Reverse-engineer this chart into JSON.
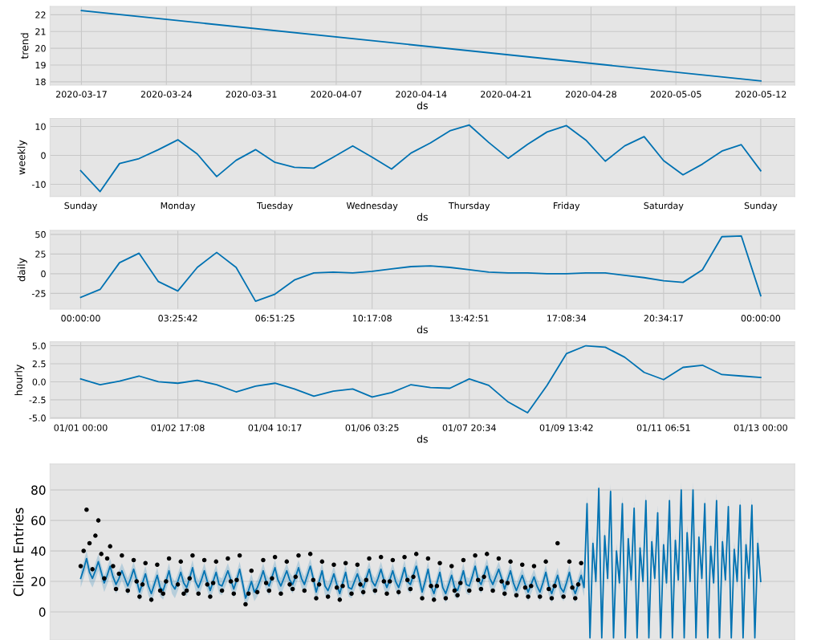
{
  "chart_data": [
    {
      "type": "line",
      "xlabel": "ds",
      "ylabel": "trend",
      "grid": true,
      "xlim": [
        "2020-03-14T10:00",
        "2020-05-14T19:00"
      ],
      "ylim": [
        17.8,
        22.5
      ],
      "xticks": [
        "2020-03-17",
        "2020-03-24",
        "2020-03-31",
        "2020-04-07",
        "2020-04-14",
        "2020-04-21",
        "2020-04-28",
        "2020-05-05",
        "2020-05-12"
      ],
      "yticks": [
        18,
        19,
        20,
        21,
        22
      ],
      "series": [
        {
          "color": "#0072b2",
          "x": [
            "2020-03-17",
            "2020-05-12"
          ],
          "values": [
            22.25,
            18.05
          ]
        }
      ]
    },
    {
      "type": "line",
      "xlabel": "ds",
      "ylabel": "weekly",
      "grid": true,
      "categories": [
        "Sunday",
        null,
        null,
        null,
        null,
        "Monday",
        null,
        null,
        null,
        null,
        "Tuesday",
        null,
        null,
        null,
        null,
        "Wednesday",
        null,
        null,
        null,
        null,
        "Thursday",
        null,
        null,
        null,
        null,
        "Friday",
        null,
        null,
        null,
        null,
        "Saturday",
        null,
        null,
        null,
        null,
        "Sunday"
      ],
      "ylim": [
        -14.2,
        12.8
      ],
      "yticks": [
        -10,
        0,
        10
      ],
      "series": [
        {
          "color": "#0072b2",
          "values": [
            -5.3,
            -12.5,
            -2.8,
            -1.1,
            2,
            5.4,
            0.5,
            -7.3,
            -1.7,
            2,
            -2.4,
            -4.1,
            -4.4,
            -0.6,
            3.3,
            -0.6,
            -4.7,
            0.8,
            4.3,
            8.5,
            10.5,
            4.5,
            -1,
            3.8,
            8.1,
            10.3,
            5.3,
            -2,
            3.3,
            6.5,
            -1.8,
            -6.7,
            -3,
            1.5,
            3.7,
            -5.3
          ]
        }
      ]
    },
    {
      "type": "line",
      "xlabel": "ds",
      "ylabel": "daily",
      "grid": true,
      "categories": [
        "00:00:00",
        null,
        null,
        null,
        null,
        "03:25:42",
        null,
        null,
        null,
        null,
        "06:51:25",
        null,
        null,
        null,
        null,
        "10:17:08",
        null,
        null,
        null,
        null,
        "13:42:51",
        null,
        null,
        null,
        null,
        "17:08:34",
        null,
        null,
        null,
        null,
        "20:34:17",
        null,
        null,
        null,
        null,
        "00:00:00"
      ],
      "ylim": [
        -45,
        55
      ],
      "yticks": [
        -25,
        0,
        25,
        50
      ],
      "series": [
        {
          "color": "#0072b2",
          "values": [
            -30,
            -20,
            14,
            26,
            -10,
            -22,
            8,
            27,
            8,
            -35,
            -26,
            -8,
            1,
            2,
            1,
            3,
            6,
            9,
            10,
            8,
            5,
            2,
            1,
            1,
            0,
            0,
            1,
            1,
            -2,
            -5,
            -9,
            -11,
            5,
            47,
            48,
            -28
          ]
        }
      ]
    },
    {
      "type": "line",
      "xlabel": "ds",
      "ylabel": "hourly",
      "grid": true,
      "categories": [
        "01/01 00:00",
        null,
        null,
        null,
        null,
        "01/02 17:08",
        null,
        null,
        null,
        null,
        "01/04 10:17",
        null,
        null,
        null,
        null,
        "01/06 03:25",
        null,
        null,
        null,
        null,
        "01/07 20:34",
        null,
        null,
        null,
        null,
        "01/09 13:42",
        null,
        null,
        null,
        null,
        "01/11 06:51",
        null,
        null,
        null,
        null,
        "01/13 00:00"
      ],
      "ylim": [
        -5.1,
        5.55
      ],
      "yticks": [
        {
          "value": -5,
          "label": "-5.0"
        },
        {
          "value": -2.5,
          "label": "-2.5"
        },
        {
          "value": 0,
          "label": "0.0"
        },
        {
          "value": 2.5,
          "label": "2.5"
        },
        {
          "value": 5,
          "label": "5.0"
        }
      ],
      "series": [
        {
          "color": "#0072b2",
          "values": [
            0.4,
            -0.4,
            0.1,
            0.8,
            0,
            -0.2,
            0.2,
            -0.4,
            -1.4,
            -0.6,
            -0.2,
            -1,
            -2,
            -1.3,
            -1,
            -2.1,
            -1.5,
            -0.4,
            -0.8,
            -0.9,
            0.4,
            -0.5,
            -2.8,
            -4.3,
            -0.5,
            3.9,
            5,
            4.8,
            3.4,
            1.3,
            0.3,
            2,
            2.3,
            1,
            0.8,
            0.6
          ]
        }
      ]
    },
    {
      "type": "line",
      "ylabel": "Client Entries",
      "grid": true,
      "tick_labels": "y",
      "categories": [
        null,
        null,
        null,
        null,
        null,
        null,
        null,
        null,
        null,
        null,
        null,
        null,
        null,
        null,
        null,
        null,
        null,
        null,
        null,
        null,
        null,
        null,
        null,
        null,
        null,
        null,
        null,
        null,
        null,
        null,
        null,
        null,
        null,
        null,
        null,
        null,
        null,
        null,
        null,
        null,
        null,
        null,
        null,
        null,
        null,
        null,
        null,
        null,
        null,
        null,
        null,
        null,
        null,
        null,
        null,
        null,
        null,
        null,
        null,
        null,
        null,
        null,
        null,
        null,
        null,
        null,
        null,
        null,
        null,
        null,
        null,
        null,
        null,
        null,
        null,
        null,
        null,
        null,
        null,
        null,
        null,
        null,
        null,
        null,
        null,
        null,
        null,
        null,
        null,
        null,
        null,
        null,
        null,
        null,
        null,
        null,
        null,
        null,
        null,
        null,
        null,
        null,
        null,
        null,
        null,
        null,
        null,
        null,
        null,
        null,
        null,
        null,
        null,
        null,
        null,
        null,
        null,
        null,
        null,
        null,
        null,
        null,
        null,
        null,
        null,
        null,
        null,
        null,
        null,
        null,
        null,
        null,
        null,
        null,
        null,
        null,
        null,
        null,
        null,
        null,
        null,
        null,
        null,
        null,
        null,
        null,
        null,
        null,
        null,
        null,
        null,
        null,
        null,
        null,
        null,
        null,
        null,
        null,
        null,
        null,
        null,
        null,
        null,
        null,
        null,
        null,
        null,
        null,
        null,
        null,
        null,
        null,
        null,
        null,
        null,
        null,
        null,
        null,
        null,
        null,
        null,
        null,
        null,
        null,
        null,
        null,
        null,
        null,
        null,
        null,
        null,
        null,
        null,
        null,
        null,
        null,
        null,
        null,
        null,
        null,
        null,
        null,
        null,
        null,
        null,
        null,
        null,
        null,
        null,
        null,
        null,
        null,
        null,
        null,
        null,
        null,
        null,
        null,
        null,
        null,
        null,
        null,
        null,
        null,
        null,
        null,
        null,
        null,
        null,
        null,
        null,
        null
      ],
      "ylim": [
        -18.4,
        97
      ],
      "yticks": [
        0,
        20,
        40,
        60,
        80
      ],
      "series": [
        {
          "type": "line",
          "color": "#0072b2",
          "values": [
            22,
            28,
            35,
            26,
            22,
            27,
            33,
            26,
            19,
            24,
            30,
            23,
            18,
            22,
            27,
            22,
            17,
            22,
            28,
            21,
            13,
            19,
            25,
            17,
            12,
            18,
            24,
            16,
            14,
            20,
            27,
            18,
            15,
            20,
            26,
            19,
            16,
            22,
            29,
            20,
            16,
            21,
            27,
            20,
            14,
            20,
            26,
            18,
            17,
            22,
            27,
            21,
            15,
            21,
            28,
            19,
            9,
            14,
            20,
            13,
            16,
            21,
            27,
            20,
            17,
            23,
            29,
            21,
            17,
            22,
            27,
            21,
            18,
            23,
            29,
            22,
            18,
            24,
            30,
            22,
            13,
            20,
            27,
            17,
            14,
            19,
            25,
            18,
            12,
            19,
            26,
            16,
            15,
            20,
            25,
            19,
            16,
            22,
            28,
            20,
            17,
            22,
            28,
            21,
            16,
            21,
            27,
            20,
            16,
            22,
            29,
            20,
            18,
            24,
            30,
            22,
            13,
            20,
            28,
            17,
            12,
            19,
            26,
            16,
            12,
            18,
            24,
            16,
            14,
            20,
            27,
            18,
            17,
            23,
            30,
            21,
            18,
            24,
            30,
            22,
            18,
            23,
            28,
            22,
            15,
            21,
            27,
            19,
            14,
            19,
            24,
            18,
            13,
            18,
            23,
            17,
            13,
            19,
            26,
            17,
            12,
            18,
            24,
            16,
            13,
            19,
            26,
            17,
            12,
            18,
            24,
            16,
            71,
            -17,
            45,
            20,
            81,
            -17,
            50,
            22,
            79,
            -17,
            40,
            19,
            71,
            -17,
            48,
            21,
            68,
            -17,
            42,
            20,
            73,
            -17,
            46,
            22,
            65,
            -17,
            44,
            19,
            73,
            -17,
            47,
            21,
            80,
            -17,
            52,
            20,
            80,
            -17,
            49,
            22,
            71,
            -17,
            43,
            19,
            73,
            -17,
            46,
            21,
            69,
            -17,
            41,
            20,
            70,
            -17,
            44,
            22,
            70,
            -17,
            45,
            20
          ],
          "lower": [
            16,
            22,
            29,
            20,
            16,
            21,
            27,
            20,
            13,
            18,
            24,
            17,
            12,
            16,
            21,
            16,
            11,
            16,
            22,
            15,
            7,
            13,
            19,
            11,
            6,
            12,
            18,
            10,
            8,
            14,
            21,
            12,
            9,
            14,
            20,
            13,
            10,
            16,
            23,
            14,
            10,
            15,
            21,
            14,
            8,
            14,
            20,
            12,
            11,
            16,
            21,
            15,
            9,
            15,
            22,
            13,
            3,
            8,
            14,
            7,
            10,
            15,
            21,
            14,
            11,
            17,
            23,
            15,
            11,
            16,
            21,
            15,
            12,
            17,
            23,
            16,
            12,
            18,
            24,
            16,
            7,
            14,
            21,
            11,
            8,
            13,
            19,
            12,
            6,
            13,
            20,
            10,
            9,
            14,
            19,
            13,
            10,
            16,
            22,
            14,
            11,
            16,
            22,
            15,
            10,
            15,
            21,
            14,
            10,
            16,
            23,
            14,
            12,
            18,
            24,
            16,
            7,
            14,
            22,
            11,
            6,
            13,
            20,
            10,
            6,
            12,
            18,
            10,
            8,
            14,
            21,
            12,
            11,
            17,
            24,
            15,
            12,
            18,
            24,
            16,
            12,
            17,
            22,
            16,
            9,
            15,
            21,
            13,
            8,
            13,
            18,
            12,
            7,
            12,
            17,
            11,
            7,
            13,
            20,
            11,
            6,
            12,
            18,
            10,
            7,
            13,
            20,
            11,
            6,
            12,
            18,
            10,
            66,
            -18,
            40,
            15,
            76,
            -18,
            45,
            17,
            74,
            -18,
            35,
            14,
            66,
            -18,
            43,
            16,
            63,
            -18,
            37,
            15,
            68,
            -18,
            41,
            17,
            60,
            -18,
            39,
            14,
            68,
            -18,
            42,
            16,
            75,
            -18,
            47,
            15,
            75,
            -18,
            44,
            17,
            66,
            -18,
            38,
            14,
            68,
            -18,
            41,
            16,
            64,
            -18,
            36,
            15,
            65,
            -18,
            39,
            17,
            65,
            -18,
            40,
            15
          ],
          "upper": [
            27,
            33,
            40,
            31,
            27,
            32,
            38,
            31,
            24,
            29,
            35,
            28,
            23,
            27,
            32,
            27,
            22,
            27,
            33,
            26,
            18,
            24,
            30,
            22,
            17,
            23,
            29,
            21,
            19,
            25,
            32,
            23,
            20,
            25,
            31,
            24,
            21,
            27,
            34,
            25,
            21,
            26,
            32,
            25,
            19,
            25,
            31,
            23,
            22,
            27,
            32,
            26,
            20,
            26,
            33,
            24,
            14,
            19,
            25,
            18,
            21,
            26,
            32,
            25,
            22,
            28,
            34,
            26,
            22,
            27,
            32,
            26,
            23,
            28,
            34,
            27,
            23,
            29,
            35,
            27,
            18,
            25,
            32,
            22,
            19,
            24,
            30,
            23,
            17,
            24,
            31,
            21,
            20,
            25,
            30,
            24,
            21,
            27,
            33,
            25,
            22,
            27,
            33,
            26,
            21,
            26,
            32,
            25,
            21,
            27,
            34,
            25,
            23,
            29,
            35,
            27,
            18,
            25,
            33,
            22,
            17,
            24,
            31,
            21,
            17,
            23,
            29,
            21,
            19,
            25,
            32,
            23,
            22,
            28,
            35,
            26,
            23,
            29,
            35,
            27,
            23,
            28,
            33,
            27,
            20,
            26,
            32,
            24,
            19,
            24,
            29,
            23,
            18,
            23,
            28,
            22,
            18,
            24,
            31,
            22,
            17,
            23,
            29,
            21,
            18,
            24,
            31,
            22,
            17,
            23,
            29,
            21,
            76,
            -12,
            50,
            25,
            86,
            -12,
            55,
            27,
            84,
            -12,
            45,
            24,
            76,
            -12,
            53,
            26,
            73,
            -12,
            47,
            25,
            78,
            -12,
            51,
            27,
            70,
            -12,
            49,
            24,
            78,
            -12,
            52,
            26,
            85,
            -12,
            57,
            25,
            85,
            -12,
            54,
            27,
            76,
            -12,
            48,
            24,
            78,
            -12,
            51,
            26,
            74,
            -12,
            46,
            25,
            75,
            -12,
            49,
            27,
            75,
            -12,
            50,
            25
          ]
        },
        {
          "type": "scatter",
          "color": "#000000",
          "marker": "circle",
          "values": [
            30,
            40,
            67,
            45,
            28,
            50,
            60,
            38,
            22,
            35,
            43,
            30,
            15,
            25,
            37,
            null,
            14,
            null,
            34,
            20,
            10,
            18,
            32,
            null,
            8,
            null,
            31,
            14,
            12,
            20,
            35,
            null,
            null,
            18,
            33,
            12,
            14,
            22,
            37,
            null,
            12,
            null,
            34,
            18,
            10,
            19,
            33,
            null,
            14,
            null,
            35,
            20,
            12,
            21,
            37,
            null,
            5,
            12,
            27,
            null,
            13,
            null,
            34,
            19,
            14,
            22,
            36,
            null,
            12,
            null,
            33,
            18,
            15,
            23,
            37,
            null,
            14,
            null,
            38,
            21,
            9,
            18,
            33,
            null,
            10,
            null,
            31,
            16,
            8,
            17,
            32,
            null,
            12,
            null,
            31,
            18,
            13,
            21,
            35,
            null,
            14,
            null,
            36,
            20,
            12,
            20,
            34,
            null,
            13,
            null,
            36,
            21,
            15,
            23,
            38,
            null,
            9,
            null,
            35,
            17,
            8,
            17,
            32,
            null,
            9,
            null,
            30,
            14,
            11,
            19,
            34,
            null,
            14,
            null,
            37,
            21,
            15,
            23,
            38,
            null,
            14,
            null,
            35,
            20,
            12,
            19,
            33,
            null,
            11,
            null,
            31,
            16,
            10,
            17,
            30,
            null,
            10,
            null,
            33,
            15,
            9,
            17,
            45,
            null,
            10,
            null,
            33,
            16,
            9,
            18,
            32,
            null,
            null,
            null,
            null,
            null,
            null,
            null,
            null,
            null,
            null,
            null,
            null,
            null,
            null,
            null,
            null,
            null,
            null,
            null,
            null,
            null,
            null,
            null,
            null,
            null,
            null,
            null,
            null,
            null,
            null,
            null,
            null,
            null,
            null,
            null,
            null,
            null,
            null,
            null,
            null,
            null,
            null,
            null,
            null,
            null,
            null,
            null,
            null,
            null,
            null,
            null,
            null,
            null,
            null,
            null,
            null,
            null,
            null,
            null,
            null,
            null
          ]
        }
      ]
    }
  ]
}
